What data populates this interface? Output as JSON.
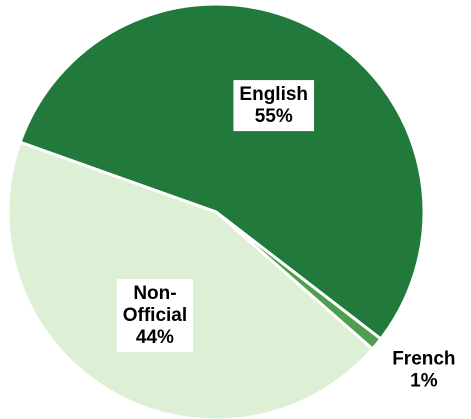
{
  "chart_data": {
    "type": "pie",
    "categories": [
      "English",
      "French",
      "Non-Official"
    ],
    "values": [
      55,
      1,
      44
    ],
    "value_labels": [
      "55%",
      "1%",
      "44%"
    ],
    "colors": [
      "#217a3c",
      "#4f9e4f",
      "#ddefd5"
    ]
  }
}
